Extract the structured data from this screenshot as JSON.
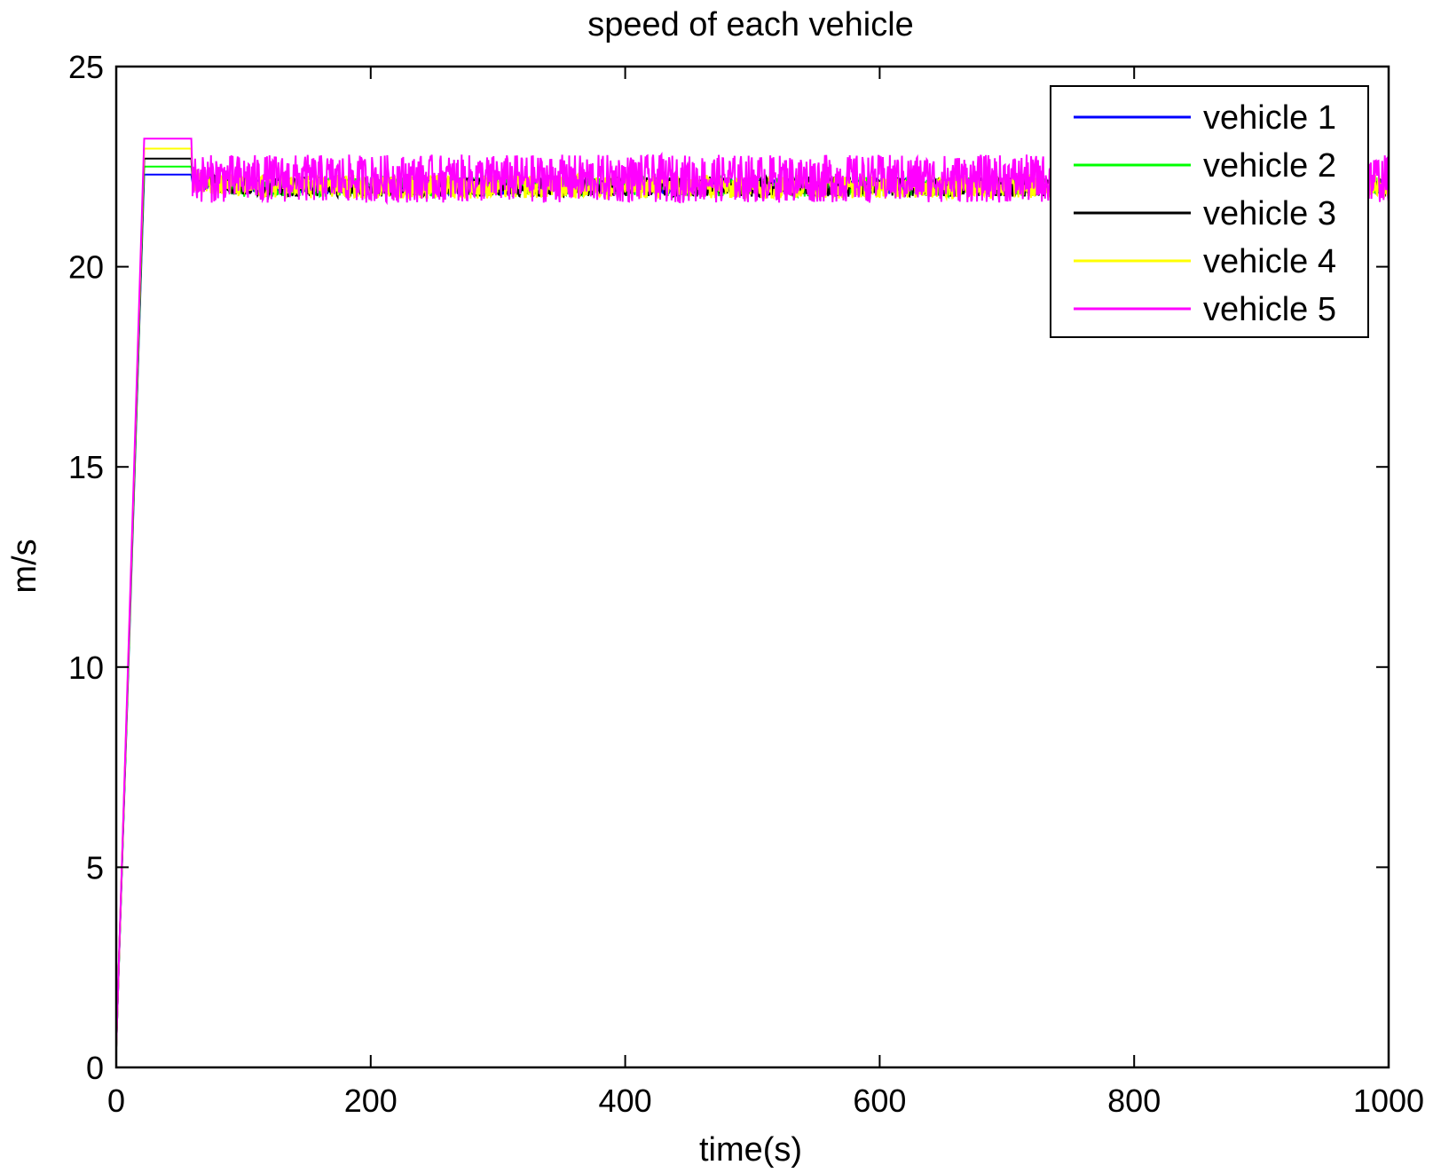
{
  "chart_data": {
    "type": "line",
    "title": "speed of each vehicle",
    "xlabel": "time(s)",
    "ylabel": "m/s",
    "xlim": [
      0,
      1000
    ],
    "ylim": [
      0,
      25
    ],
    "xticks": [
      0,
      200,
      400,
      600,
      800,
      1000
    ],
    "yticks": [
      0,
      5,
      10,
      15,
      20,
      25
    ],
    "grid": false,
    "legend_position": "top-right",
    "series": [
      {
        "name": "vehicle 1",
        "color": "#0000ff",
        "x": [
          0,
          22,
          59,
          60,
          100,
          1000
        ],
        "y": [
          0.5,
          22.3,
          22.3,
          22.1,
          22.0,
          22.0
        ],
        "noise_from": 60,
        "noise_amplitude": 0.2
      },
      {
        "name": "vehicle 2",
        "color": "#00ff00",
        "x": [
          0,
          22,
          59,
          60,
          100,
          1000
        ],
        "y": [
          0.5,
          22.5,
          22.5,
          22.2,
          22.0,
          22.0
        ],
        "noise_from": 60,
        "noise_amplitude": 0.25
      },
      {
        "name": "vehicle 3",
        "color": "#000000",
        "x": [
          0,
          22,
          59,
          60,
          100,
          1000
        ],
        "y": [
          0.5,
          22.7,
          22.7,
          22.2,
          22.0,
          22.0
        ],
        "noise_from": 60,
        "noise_amplitude": 0.25
      },
      {
        "name": "vehicle 4",
        "color": "#ffff00",
        "x": [
          0,
          22,
          59,
          60,
          100,
          1000
        ],
        "y": [
          0.5,
          22.95,
          22.95,
          22.2,
          22.0,
          22.0
        ],
        "noise_from": 60,
        "noise_amplitude": 0.3
      },
      {
        "name": "vehicle 5",
        "color": "#ff00ff",
        "x": [
          0,
          22,
          59,
          60,
          100,
          1000
        ],
        "y": [
          0.5,
          23.2,
          23.2,
          22.2,
          22.2,
          22.2
        ],
        "noise_from": 60,
        "noise_amplitude": 0.6
      }
    ]
  }
}
